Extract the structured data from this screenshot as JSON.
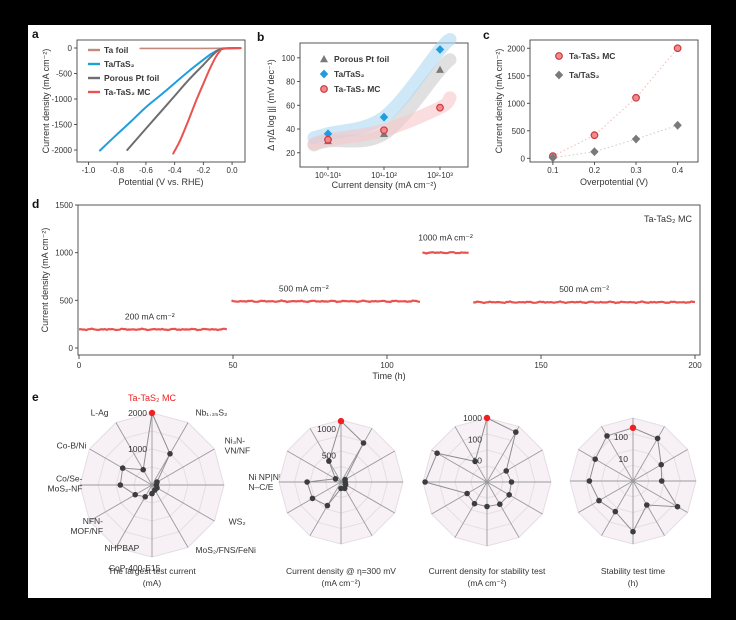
{
  "figure": {
    "background": "#000000",
    "canvas": "#ffffff"
  },
  "panel_labels": {
    "a": "a",
    "b": "b",
    "c": "c",
    "d": "d",
    "e": "e"
  },
  "colors": {
    "red": "#e9534f",
    "blue": "#1f9ddf",
    "gray": "#6e6e6e",
    "tan": "#c18a7c",
    "band_red": "#f6c6c9",
    "band_blue": "#add9f1",
    "band_gray": "#cccccc",
    "dash_red": "#f3b9bb",
    "dash_gray": "#cccccc",
    "marker_red_fill": "#ef8b8b",
    "marker_red_stroke": "#cb3a41",
    "marker_blue": "#1f9ddf",
    "marker_gray": "#7a7a7a",
    "radar_fill": "#f7f1f6",
    "radar_ring": "#e5dde4",
    "radar_spoke": "#9a9a9a",
    "radar_line": "#8f8f8f",
    "dot": "#3d3d3d",
    "accent_red": "#ee2024",
    "text": "#333333",
    "axis": "#444444"
  },
  "chart_data": [
    {
      "id": "a",
      "type": "line",
      "xlabel": "Potential (V vs. RHE)",
      "ylabel": "Current density (mA cm⁻²)",
      "xlim": [
        -1.08,
        0.09
      ],
      "ylim": [
        -2235,
        157
      ],
      "xticks": [
        {
          "v": -1.0,
          "t": "-1.0"
        },
        {
          "v": -0.8,
          "t": "-0.8"
        },
        {
          "v": -0.6,
          "t": "-0.6"
        },
        {
          "v": -0.4,
          "t": "-0.4"
        },
        {
          "v": -0.2,
          "t": "-0.2"
        },
        {
          "v": 0.0,
          "t": "0.0"
        }
      ],
      "yticks": [
        {
          "v": 0,
          "t": "0"
        },
        {
          "v": -500,
          "t": "-500"
        },
        {
          "v": -1000,
          "t": "-1000"
        },
        {
          "v": -1500,
          "t": "-1500"
        },
        {
          "v": -2000,
          "t": "-2000"
        }
      ],
      "legend": [
        "Ta foil",
        "Ta/TaS₂",
        "Porous Pt foil",
        "Ta-TaS₂ MC"
      ],
      "series": [
        {
          "name": "Ta foil",
          "color": "tan",
          "points": [
            [
              -0.64,
              -8
            ],
            [
              -0.4,
              -8
            ],
            [
              -0.2,
              -8
            ],
            [
              0.06,
              -4
            ]
          ]
        },
        {
          "name": "Ta/TaS₂",
          "color": "blue",
          "points": [
            [
              -0.92,
              -2010
            ],
            [
              -0.8,
              -1690
            ],
            [
              -0.7,
              -1430
            ],
            [
              -0.6,
              -1160
            ],
            [
              -0.5,
              -930
            ],
            [
              -0.4,
              -690
            ],
            [
              -0.3,
              -450
            ],
            [
              -0.2,
              -230
            ],
            [
              -0.14,
              -105
            ],
            [
              -0.1,
              -45
            ],
            [
              -0.05,
              -10
            ],
            [
              0.06,
              -2
            ]
          ]
        },
        {
          "name": "Porous Pt foil",
          "color": "gray",
          "points": [
            [
              -0.73,
              -2000
            ],
            [
              -0.6,
              -1580
            ],
            [
              -0.5,
              -1260
            ],
            [
              -0.4,
              -940
            ],
            [
              -0.3,
              -620
            ],
            [
              -0.2,
              -330
            ],
            [
              -0.14,
              -150
            ],
            [
              -0.1,
              -50
            ],
            [
              -0.06,
              -8
            ],
            [
              0.05,
              -2
            ]
          ]
        },
        {
          "name": "Ta-TaS₂ MC",
          "color": "red",
          "points": [
            [
              -0.41,
              -2070
            ],
            [
              -0.36,
              -1800
            ],
            [
              -0.3,
              -1390
            ],
            [
              -0.25,
              -1030
            ],
            [
              -0.2,
              -700
            ],
            [
              -0.16,
              -440
            ],
            [
              -0.12,
              -210
            ],
            [
              -0.09,
              -80
            ],
            [
              -0.06,
              -15
            ],
            [
              0.06,
              -2
            ]
          ]
        }
      ]
    },
    {
      "id": "b",
      "type": "scatter",
      "xlabel": "Current density (mA cm⁻²)",
      "ylabel": "Δ η/Δ log |j| (mV dec⁻¹)",
      "categories": [
        "10⁰-10¹",
        "10¹-10²",
        "10²-10³"
      ],
      "ylim": [
        8,
        112.5
      ],
      "yticks": [
        {
          "v": 20,
          "t": "20"
        },
        {
          "v": 40,
          "t": "40"
        },
        {
          "v": 60,
          "t": "60"
        },
        {
          "v": 80,
          "t": "80"
        },
        {
          "v": 100,
          "t": "100"
        }
      ],
      "series": [
        {
          "name": "Porous Pt foil",
          "marker": "triangle",
          "color": "gray",
          "band": "band_gray",
          "values": [
            30,
            36,
            90
          ]
        },
        {
          "name": "Ta/TaS₂",
          "marker": "diamond",
          "color": "blue",
          "band": "band_blue",
          "values": [
            36,
            50,
            107
          ]
        },
        {
          "name": "Ta-TaS₂ MC",
          "marker": "circle",
          "color": "red",
          "band": "band_red",
          "values": [
            31,
            39,
            58
          ]
        }
      ]
    },
    {
      "id": "c",
      "type": "scatter",
      "xlabel": "Overpotential (V)",
      "ylabel": "Current density (mA cm⁻²)",
      "x": [
        0.1,
        0.2,
        0.3,
        0.4
      ],
      "xlim": [
        0.045,
        0.449
      ],
      "ylim": [
        -67,
        2150
      ],
      "xticks": [
        {
          "v": 0.1,
          "t": "0.1"
        },
        {
          "v": 0.2,
          "t": "0.2"
        },
        {
          "v": 0.3,
          "t": "0.3"
        },
        {
          "v": 0.4,
          "t": "0.4"
        }
      ],
      "yticks": [
        {
          "v": 0,
          "t": "0"
        },
        {
          "v": 500,
          "t": "500"
        },
        {
          "v": 1000,
          "t": "1000"
        },
        {
          "v": 1500,
          "t": "1500"
        },
        {
          "v": 2000,
          "t": "2000"
        }
      ],
      "series": [
        {
          "name": "Ta-TaS₂ MC",
          "marker": "circle",
          "color": "red",
          "dash": "dash_red",
          "values": [
            40,
            420,
            1100,
            2000
          ]
        },
        {
          "name": "Ta/TaS₂",
          "marker": "diamond",
          "color": "gray",
          "dash": "dash_gray",
          "values": [
            10,
            120,
            350,
            600
          ]
        }
      ]
    },
    {
      "id": "d",
      "type": "line",
      "xlabel": "Time (h)",
      "ylabel": "Current density (mA cm⁻²)",
      "annotation": "Ta-TaS₂ MC",
      "xlim": [
        0,
        200
      ],
      "ylim": [
        0,
        1500
      ],
      "xticks": [
        {
          "v": 0,
          "t": "0"
        },
        {
          "v": 50,
          "t": "50"
        },
        {
          "v": 100,
          "t": "100"
        },
        {
          "v": 150,
          "t": "150"
        },
        {
          "v": 200,
          "t": "200"
        }
      ],
      "yticks": [
        {
          "v": 0,
          "t": "0"
        },
        {
          "v": 500,
          "t": "500"
        },
        {
          "v": 1000,
          "t": "1000"
        },
        {
          "v": 1500,
          "t": "1500"
        }
      ],
      "segments": [
        {
          "label": "200 mA cm⁻²",
          "t0": 0,
          "t1": 48.5,
          "j": 195,
          "label_t": 23
        },
        {
          "label": "500 mA cm⁻²",
          "t0": 49.5,
          "t1": 111,
          "j": 490,
          "label_t": 73
        },
        {
          "label": "1000 mA cm⁻²",
          "t0": 111.5,
          "t1": 126.5,
          "j": 1000,
          "label_t": 119
        },
        {
          "label": "500 mA cm⁻²",
          "t0": 128,
          "t1": 200,
          "j": 480,
          "label_t": 164
        }
      ]
    },
    {
      "id": "e",
      "type": "radar",
      "spokes": [
        "Ta-TaS₂ MC",
        "Nb₁.₃₅S₂",
        "Ni₃N-\nVN/NF",
        "Ni NP|Ni-\nN–C/E",
        "WS₂",
        "MoS₂/FNS/FeNi",
        "CoP-400-E15",
        "NHPBAP",
        "NFN-\nMOF/NF",
        "Co/Se-\nMoS₂-NF",
        "Co-B/Ni",
        "L-Ag"
      ],
      "highlight_index": 0,
      "charts": [
        {
          "caption": "The largest test current",
          "unit": "(mA)",
          "scale": "linear",
          "max": 2000,
          "ring_labels": [
            {
              "value": 2000,
              "text": "2000"
            },
            {
              "value": 1000,
              "text": "1000"
            }
          ],
          "values": [
            2000,
            1000,
            160,
            120,
            160,
            160,
            240,
            380,
            540,
            880,
            940,
            490
          ]
        },
        {
          "caption": "Current density @ η=300 mV",
          "unit": "(mA cm⁻²)",
          "scale": "linear",
          "max": 1170,
          "ring_labels": [
            {
              "value": 1000,
              "text": "1000"
            },
            {
              "value": 500,
              "text": "500"
            }
          ],
          "values": [
            1150,
            850,
            90,
            80,
            100,
            140,
            120,
            515,
            620,
            640,
            120,
            455
          ]
        },
        {
          "caption": "Current density for stability test",
          "unit": "(mA cm⁻²)",
          "scale": "log",
          "max": 1000,
          "ring_labels": [
            {
              "value": 1000,
              "text": "1000"
            },
            {
              "value": 100,
              "text": "100"
            },
            {
              "value": 10,
              "text": "10"
            }
          ],
          "values": [
            1000,
            500,
            11,
            14,
            16,
            16,
            14,
            15,
            12,
            800,
            500,
            13
          ]
        },
        {
          "caption": "Stability test time",
          "unit": "(h)",
          "scale": "log",
          "max": 720,
          "ring_labels": [
            {
              "value": 100,
              "text": "100"
            },
            {
              "value": 10,
              "text": "10"
            }
          ],
          "values": [
            260,
            170,
            30,
            20,
            215,
            18,
            200,
            40,
            60,
            95,
            95,
            230
          ]
        }
      ]
    }
  ]
}
